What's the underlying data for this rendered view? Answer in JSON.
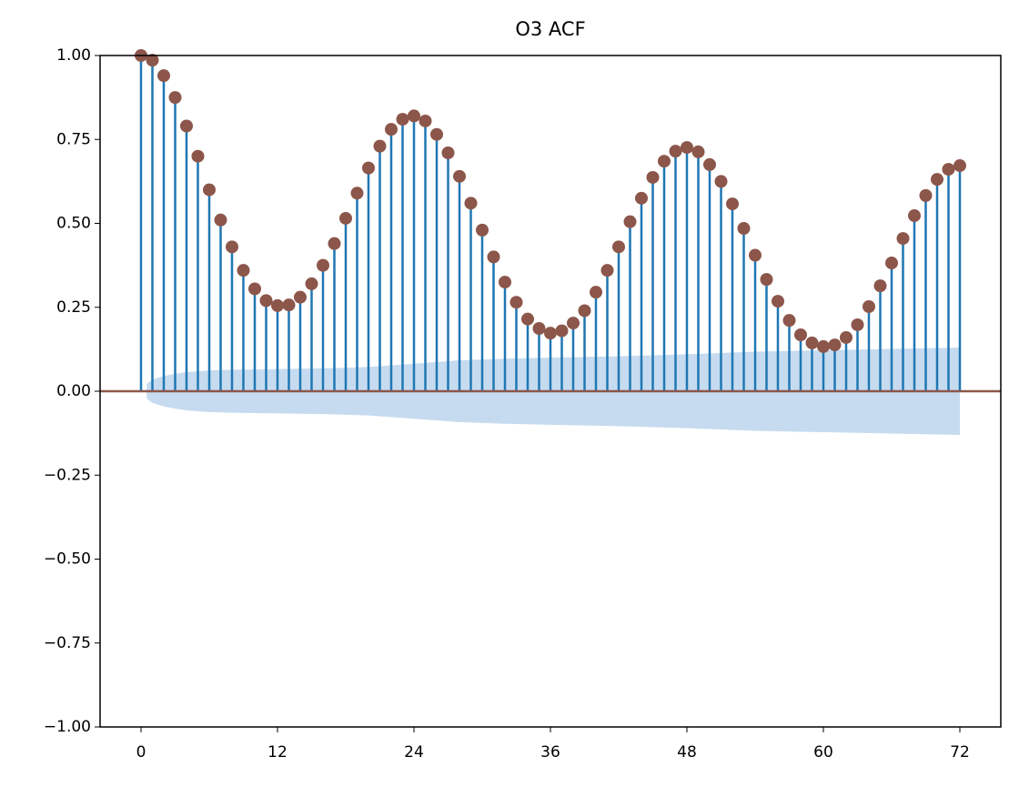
{
  "chart_data": {
    "type": "stem",
    "title": "O3 ACF",
    "x": [
      0,
      1,
      2,
      3,
      4,
      5,
      6,
      7,
      8,
      9,
      10,
      11,
      12,
      13,
      14,
      15,
      16,
      17,
      18,
      19,
      20,
      21,
      22,
      23,
      24,
      25,
      26,
      27,
      28,
      29,
      30,
      31,
      32,
      33,
      34,
      35,
      36,
      37,
      38,
      39,
      40,
      41,
      42,
      43,
      44,
      45,
      46,
      47,
      48,
      49,
      50,
      51,
      52,
      53,
      54,
      55,
      56,
      57,
      58,
      59,
      60,
      61,
      62,
      63,
      64,
      65,
      66,
      67,
      68,
      69,
      70,
      71,
      72
    ],
    "values": [
      1.0,
      0.986,
      0.94,
      0.875,
      0.79,
      0.7,
      0.6,
      0.51,
      0.43,
      0.36,
      0.305,
      0.27,
      0.255,
      0.257,
      0.28,
      0.32,
      0.375,
      0.44,
      0.515,
      0.59,
      0.665,
      0.73,
      0.78,
      0.81,
      0.82,
      0.805,
      0.765,
      0.71,
      0.64,
      0.56,
      0.48,
      0.4,
      0.325,
      0.265,
      0.215,
      0.187,
      0.173,
      0.18,
      0.203,
      0.24,
      0.295,
      0.36,
      0.43,
      0.505,
      0.575,
      0.637,
      0.685,
      0.715,
      0.726,
      0.713,
      0.675,
      0.625,
      0.558,
      0.485,
      0.405,
      0.333,
      0.268,
      0.211,
      0.168,
      0.144,
      0.133,
      0.138,
      0.16,
      0.198,
      0.252,
      0.314,
      0.382,
      0.455,
      0.523,
      0.583,
      0.631,
      0.661,
      0.672
    ],
    "stem_color": "#1f77b4",
    "marker_color": "#8c564b",
    "band_x": [
      0.5,
      1,
      2,
      3,
      4,
      6,
      8,
      12,
      16,
      20,
      24,
      28,
      32,
      36,
      42,
      48,
      54,
      60,
      66,
      72
    ],
    "band": [
      0.022,
      0.035,
      0.045,
      0.052,
      0.057,
      0.062,
      0.064,
      0.066,
      0.068,
      0.072,
      0.082,
      0.092,
      0.097,
      0.1,
      0.104,
      0.11,
      0.118,
      0.122,
      0.126,
      0.13
    ],
    "band_color": "#c6dbef",
    "xlim": [
      -3.6,
      75.6
    ],
    "xticks": [
      0,
      12,
      24,
      36,
      48,
      60,
      72
    ],
    "ylim": [
      -1,
      1
    ],
    "yticks": [
      {
        "value": -1,
        "label": "−1.00"
      },
      {
        "value": -0.75,
        "label": "−0.75"
      },
      {
        "value": -0.5,
        "label": "−0.50"
      },
      {
        "value": -0.25,
        "label": "−0.25"
      },
      {
        "value": 0,
        "label": "0.00"
      },
      {
        "value": 0.25,
        "label": "0.25"
      },
      {
        "value": 0.5,
        "label": "0.50"
      },
      {
        "value": 0.75,
        "label": "0.75"
      },
      {
        "value": 1,
        "label": "1.00"
      }
    ]
  }
}
